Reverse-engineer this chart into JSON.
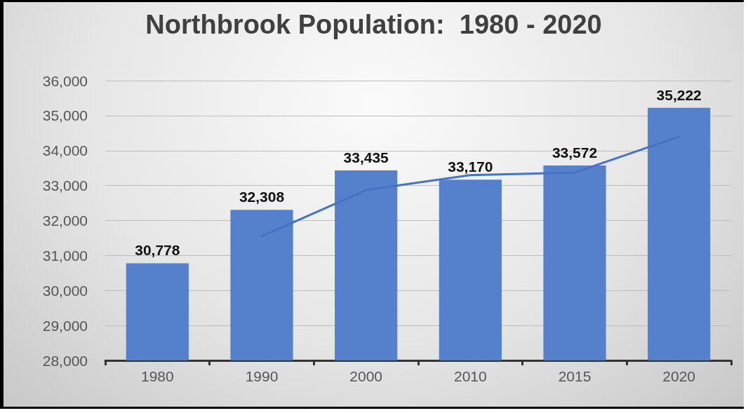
{
  "chart_data": {
    "type": "bar",
    "title": "Northbrook Population:  1980 - 2020",
    "categories": [
      "1980",
      "1990",
      "2000",
      "2010",
      "2015",
      "2020"
    ],
    "series": [
      {
        "color": "#5580cb",
        "values": [
          30778,
          32308,
          33435,
          33170,
          33572,
          35222
        ],
        "value_labels": [
          "30,778",
          "32,308",
          "33,435",
          "33,170",
          "33,572",
          "35,222"
        ]
      },
      {
        "type": "line",
        "color": "#4472c4",
        "values": [
          null,
          31550,
          32870,
          33300,
          33370,
          34400
        ],
        "marker": "none"
      }
    ],
    "ylim": [
      28000,
      36000
    ],
    "yticks": [
      {
        "value": 28000,
        "label": "28,000"
      },
      {
        "value": 29000,
        "label": "29,000"
      },
      {
        "value": 30000,
        "label": "30,000"
      },
      {
        "value": 31000,
        "label": "31,000"
      },
      {
        "value": 32000,
        "label": "32,000"
      },
      {
        "value": 33000,
        "label": "33,000"
      },
      {
        "value": 34000,
        "label": "34,000"
      },
      {
        "value": 35000,
        "label": "35,000"
      },
      {
        "value": 36000,
        "label": "36,000"
      }
    ],
    "grid": "y"
  }
}
